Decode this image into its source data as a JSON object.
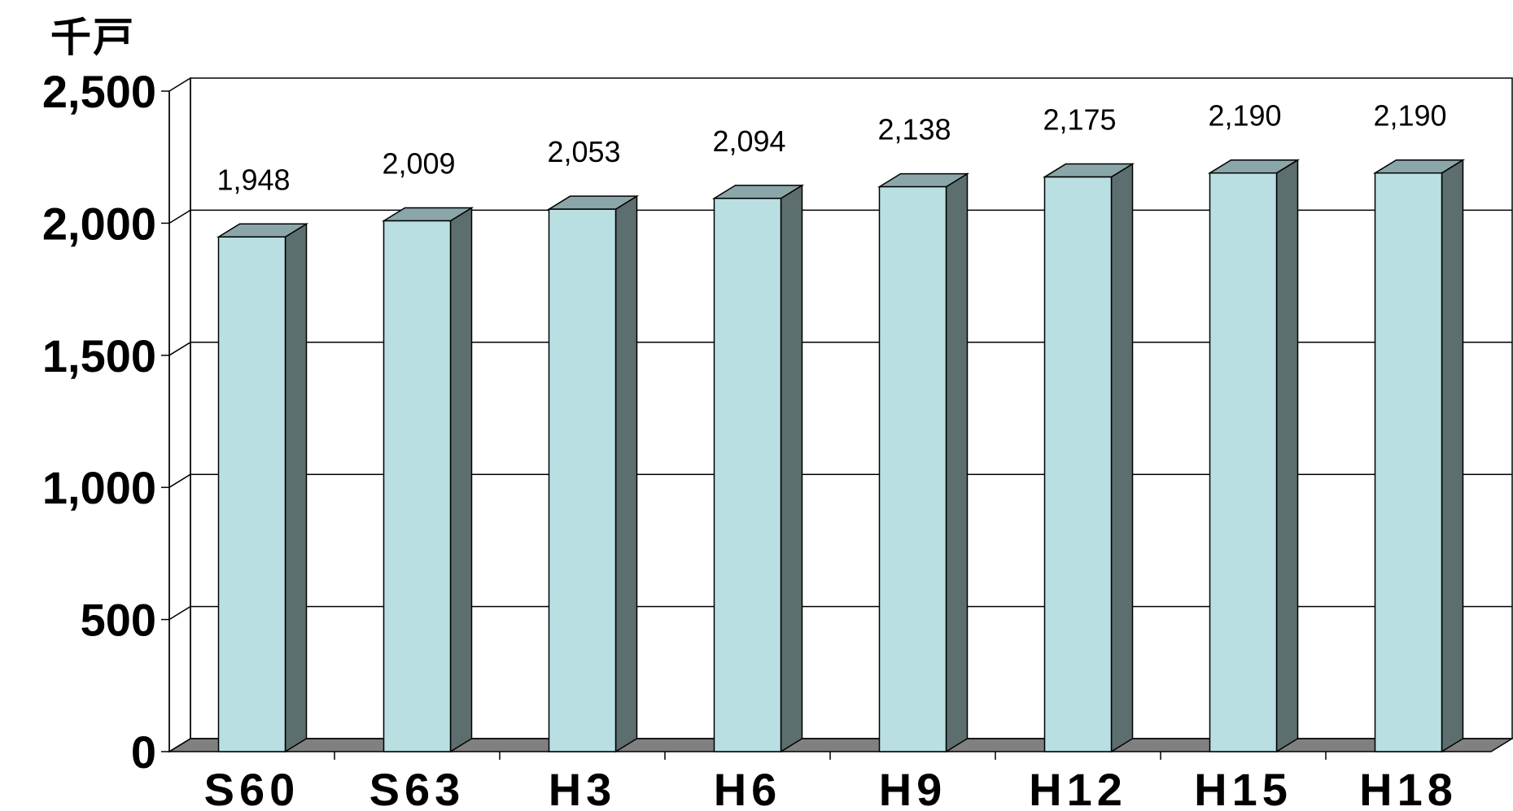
{
  "chart_data": {
    "type": "bar",
    "unit_label": "千戸",
    "categories": [
      "S60",
      "S63",
      "H3",
      "H6",
      "H9",
      "H12",
      "H15",
      "H18"
    ],
    "values": [
      1948,
      2009,
      2053,
      2094,
      2138,
      2175,
      2190,
      2190
    ],
    "data_labels": [
      "1,948",
      "2,009",
      "2,053",
      "2,094",
      "2,138",
      "2,175",
      "2,190",
      "2,190"
    ],
    "y_ticks": [
      0,
      500,
      1000,
      1500,
      2000,
      2500
    ],
    "y_tick_labels": [
      "0",
      "500",
      "1,000",
      "1,500",
      "2,000",
      "2,500"
    ],
    "ylim": [
      0,
      2500
    ],
    "grid": true,
    "style": "3d-column",
    "colors": {
      "bar_front": "#b9dfe2",
      "bar_top": "#8aa6a8",
      "bar_side": "#5d6e6f",
      "floor": "#808080",
      "gridline": "#000000"
    }
  }
}
